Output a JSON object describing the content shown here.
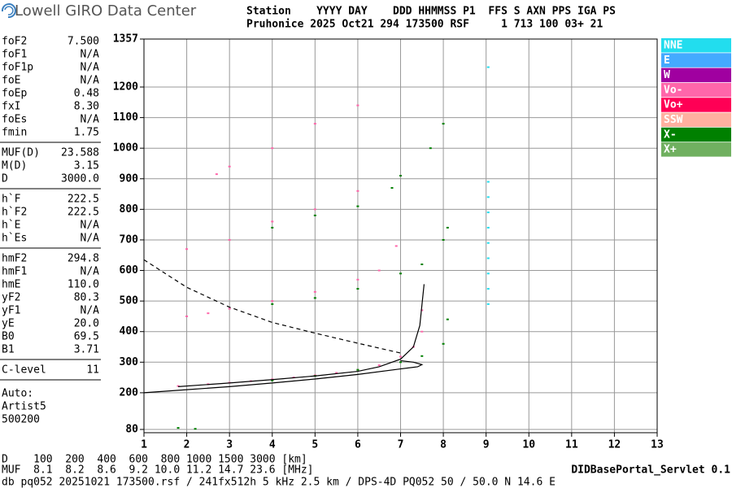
{
  "header": {
    "brand": "Lowell GIRO Data Center",
    "line1": "Station    YYYY DAY    DDD HHMMSS P1  FFS S AXN PPS IGA PS",
    "line2": "Pruhonice 2025 Oct21 294 173500 RSF     1 713 100 03+ 21"
  },
  "params": [
    [
      [
        "foF2",
        "7.500"
      ],
      [
        "foF1",
        "N/A"
      ],
      [
        "foF1p",
        "N/A"
      ],
      [
        "foE",
        "N/A"
      ],
      [
        "foEp",
        "0.48"
      ],
      [
        "fxI",
        "8.30"
      ],
      [
        "foEs",
        "N/A"
      ],
      [
        "fmin",
        "1.75"
      ]
    ],
    [
      [
        "MUF(D)",
        "23.588"
      ],
      [
        "M(D)",
        "3.15"
      ],
      [
        "D",
        "3000.0"
      ]
    ],
    [
      [
        "h`F",
        "222.5"
      ],
      [
        "h`F2",
        "222.5"
      ],
      [
        "h`E",
        "N/A"
      ],
      [
        "h`Es",
        "N/A"
      ]
    ],
    [
      [
        "hmF2",
        "294.8"
      ],
      [
        "hmF1",
        "N/A"
      ],
      [
        "hmE",
        "110.0"
      ],
      [
        "yF2",
        "80.3"
      ],
      [
        "yF1",
        "N/A"
      ],
      [
        "yE",
        "20.0"
      ],
      [
        "B0",
        "69.5"
      ],
      [
        "B1",
        "3.71"
      ]
    ],
    [
      [
        "C-level",
        "11"
      ]
    ]
  ],
  "auto": [
    "Auto:",
    "Artist5",
    "500200"
  ],
  "footer": {
    "d_line": "D    100  200  400  600  800 1000 1500 3000 [km]",
    "muf_line": "MUF  8.1  8.2  8.6  9.2 10.0 11.2 14.7 23.6 [MHz]",
    "servlet": "DIDBasePortal_Servlet 0.1",
    "db_line": "db pq052 20251021 173500.rsf / 241fx512h 5 kHz 2.5 km / DPS-4D PQ052 50 / 50.0 N 14.6 E"
  },
  "chart_data": {
    "type": "scatter",
    "xlim": [
      1,
      13
    ],
    "xticks": [
      1,
      2,
      3,
      4,
      5,
      6,
      7,
      8,
      9,
      10,
      11,
      12,
      13
    ],
    "ylim": [
      80,
      1357
    ],
    "yticks": [
      80,
      200,
      300,
      400,
      500,
      600,
      700,
      800,
      900,
      1000,
      1100,
      1200,
      1357
    ],
    "grid": true,
    "legend": [
      {
        "name": "NNE",
        "color": "#22ddee"
      },
      {
        "name": "E",
        "color": "#44aaff"
      },
      {
        "name": "W",
        "color": "#a000a0"
      },
      {
        "name": "Vo-",
        "color": "#ff66aa"
      },
      {
        "name": "Vo+",
        "color": "#ff0055"
      },
      {
        "name": "SSW",
        "color": "#ffb0a0"
      },
      {
        "name": "X-",
        "color": "#008000"
      },
      {
        "name": "X+",
        "color": "#70b060"
      }
    ],
    "series": [
      {
        "name": "Vo-",
        "color": "#ff66aa",
        "x": [
          1.8,
          2.5,
          3,
          3.5,
          4,
          4.5,
          5,
          5.5,
          6,
          6.5,
          7,
          7.3,
          7.5,
          7.5,
          2,
          2.5,
          3,
          4,
          5,
          6,
          6.5,
          6.9,
          2,
          3,
          4,
          5,
          6,
          2.7,
          3,
          4,
          5,
          6
        ],
        "values": [
          222,
          228,
          233,
          238,
          244,
          250,
          257,
          265,
          275,
          290,
          318,
          350,
          400,
          470,
          450,
          460,
          475,
          500,
          530,
          570,
          600,
          680,
          670,
          700,
          760,
          800,
          860,
          915,
          940,
          1000,
          1080,
          1140
        ]
      },
      {
        "name": "X-",
        "color": "#008000",
        "x": [
          4,
          5,
          6,
          7,
          7.5,
          8,
          8.1,
          4,
          5,
          6,
          7,
          7.5,
          8,
          8.1,
          4,
          5,
          6,
          6.8,
          7,
          7.7,
          8,
          1.8,
          2.2
        ],
        "values": [
          240,
          255,
          275,
          300,
          320,
          360,
          440,
          490,
          510,
          540,
          590,
          620,
          700,
          740,
          740,
          780,
          810,
          870,
          910,
          1000,
          1080,
          85,
          82
        ]
      },
      {
        "name": "NNE",
        "color": "#22ddee",
        "x": [
          9.05,
          9.05,
          9.05,
          9.05,
          9.05,
          9.05,
          9.05,
          9.05,
          9.05,
          9.05
        ],
        "values": [
          490,
          540,
          590,
          640,
          690,
          740,
          790,
          840,
          890,
          1265
        ]
      }
    ],
    "lines": [
      {
        "style": "solid",
        "x": [
          1,
          2,
          3,
          4,
          5,
          6,
          7,
          7.4,
          7.5,
          7.3,
          7.0
        ],
        "values": [
          200,
          210,
          220,
          232,
          245,
          260,
          278,
          285,
          292,
          300,
          305
        ]
      },
      {
        "style": "solid",
        "x": [
          1.8,
          3,
          4,
          5,
          6,
          6.5,
          7,
          7.3,
          7.45,
          7.55
        ],
        "values": [
          220,
          232,
          243,
          255,
          270,
          285,
          310,
          350,
          420,
          555
        ]
      },
      {
        "style": "dashed",
        "x": [
          1,
          2,
          3,
          4,
          5,
          6,
          7
        ],
        "values": [
          635,
          545,
          480,
          430,
          395,
          362,
          330
        ]
      }
    ]
  }
}
